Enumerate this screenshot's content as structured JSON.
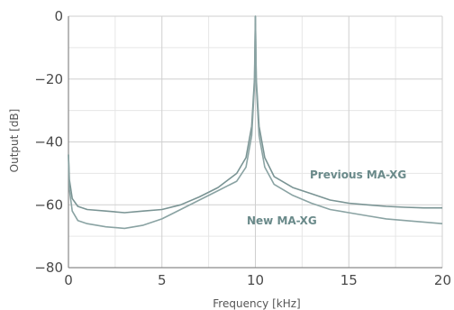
{
  "chart_data": {
    "type": "line",
    "title": "",
    "xlabel": "Frequency [kHz]",
    "ylabel": "Output [dB]",
    "xlim": [
      0,
      20
    ],
    "ylim": [
      -80,
      0
    ],
    "x_ticks": [
      "0",
      "5",
      "10",
      "15",
      "20"
    ],
    "y_ticks": [
      "0",
      "−20",
      "−40",
      "−60",
      "−80"
    ],
    "grid": true,
    "legend": "none",
    "annotations": [
      {
        "text": "Previous MA-XG",
        "series": "Previous MA-XG"
      },
      {
        "text": "New MA-XG",
        "series": "New MA-XG"
      }
    ],
    "series": [
      {
        "name": "Previous MA-XG",
        "color": "#7a9494",
        "x": [
          0,
          0.05,
          0.2,
          0.5,
          1,
          2,
          3,
          4,
          5,
          6,
          7,
          8,
          9,
          9.5,
          9.8,
          9.95,
          10,
          10.05,
          10.2,
          10.5,
          11,
          12,
          13,
          14,
          15,
          16,
          17,
          18,
          19,
          20
        ],
        "y": [
          -44,
          -52,
          -58,
          -60.5,
          -61.5,
          -62,
          -62.5,
          -62,
          -61.5,
          -60,
          -57.5,
          -54.5,
          -50,
          -45,
          -35,
          -20,
          0,
          -20,
          -35,
          -45,
          -51,
          -54.5,
          -56.5,
          -58.5,
          -59.5,
          -60,
          -60.5,
          -60.8,
          -61,
          -61
        ]
      },
      {
        "name": "New MA-XG",
        "color": "#8aa3a3",
        "x": [
          0,
          0.05,
          0.2,
          0.5,
          1,
          2,
          3,
          4,
          5,
          6,
          7,
          8,
          9,
          9.5,
          9.8,
          9.95,
          10,
          10.05,
          10.2,
          10.5,
          11,
          12,
          13,
          14,
          15,
          16,
          17,
          18,
          19,
          20
        ],
        "y": [
          -44,
          -55,
          -62,
          -65,
          -66,
          -67,
          -67.5,
          -66.5,
          -64.5,
          -61.5,
          -58.5,
          -55.5,
          -52.5,
          -48,
          -38,
          -22,
          0,
          -22,
          -38,
          -48,
          -53.5,
          -57,
          -59.5,
          -61.5,
          -62.5,
          -63.5,
          -64.5,
          -65,
          -65.5,
          -66
        ]
      }
    ]
  }
}
